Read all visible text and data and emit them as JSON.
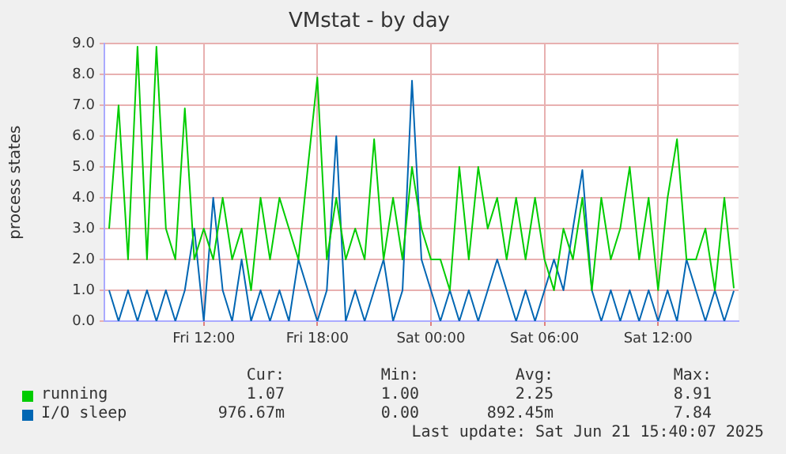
{
  "chart_data": {
    "type": "line",
    "title": "VMstat - by day",
    "ylabel": "process states",
    "xlim": [
      "2025-06-20T06:45",
      "2025-06-21T16:15"
    ],
    "xticks": [
      {
        "value": "2025-06-20T12:00",
        "label": "Fri 12:00"
      },
      {
        "value": "2025-06-20T18:00",
        "label": "Fri 18:00"
      },
      {
        "value": "2025-06-21T00:00",
        "label": "Sat 00:00"
      },
      {
        "value": "2025-06-21T06:00",
        "label": "Sat 06:00"
      },
      {
        "value": "2025-06-21T12:00",
        "label": "Sat 12:00"
      }
    ],
    "ylim": [
      0,
      9
    ],
    "yticks": [
      {
        "value": 0,
        "label": "0.0"
      },
      {
        "value": 1,
        "label": "1.0"
      },
      {
        "value": 2,
        "label": "2.0"
      },
      {
        "value": 3,
        "label": "3.0"
      },
      {
        "value": 4,
        "label": "4.0"
      },
      {
        "value": 5,
        "label": "5.0"
      },
      {
        "value": 6,
        "label": "6.0"
      },
      {
        "value": 7,
        "label": "7.0"
      },
      {
        "value": 8,
        "label": "8.0"
      },
      {
        "value": 9,
        "label": "9.0"
      }
    ],
    "x": [
      "2025-06-20T07:00",
      "2025-06-20T07:30",
      "2025-06-20T08:00",
      "2025-06-20T08:30",
      "2025-06-20T09:00",
      "2025-06-20T09:30",
      "2025-06-20T10:00",
      "2025-06-20T10:30",
      "2025-06-20T11:00",
      "2025-06-20T11:30",
      "2025-06-20T12:00",
      "2025-06-20T12:30",
      "2025-06-20T13:00",
      "2025-06-20T13:30",
      "2025-06-20T14:00",
      "2025-06-20T14:30",
      "2025-06-20T15:00",
      "2025-06-20T15:30",
      "2025-06-20T16:00",
      "2025-06-20T16:30",
      "2025-06-20T17:00",
      "2025-06-20T17:30",
      "2025-06-20T18:00",
      "2025-06-20T18:30",
      "2025-06-20T19:00",
      "2025-06-20T19:30",
      "2025-06-20T20:00",
      "2025-06-20T20:30",
      "2025-06-20T21:00",
      "2025-06-20T21:30",
      "2025-06-20T22:00",
      "2025-06-20T22:30",
      "2025-06-20T23:00",
      "2025-06-20T23:30",
      "2025-06-21T00:00",
      "2025-06-21T00:30",
      "2025-06-21T01:00",
      "2025-06-21T01:30",
      "2025-06-21T02:00",
      "2025-06-21T02:30",
      "2025-06-21T03:00",
      "2025-06-21T03:30",
      "2025-06-21T04:00",
      "2025-06-21T04:30",
      "2025-06-21T05:00",
      "2025-06-21T05:30",
      "2025-06-21T06:00",
      "2025-06-21T06:30",
      "2025-06-21T07:00",
      "2025-06-21T07:30",
      "2025-06-21T08:00",
      "2025-06-21T08:30",
      "2025-06-21T09:00",
      "2025-06-21T09:30",
      "2025-06-21T10:00",
      "2025-06-21T10:30",
      "2025-06-21T11:00",
      "2025-06-21T11:30",
      "2025-06-21T12:00",
      "2025-06-21T12:30",
      "2025-06-21T13:00",
      "2025-06-21T13:30",
      "2025-06-21T14:00",
      "2025-06-21T14:30",
      "2025-06-21T15:00",
      "2025-06-21T15:30",
      "2025-06-21T16:00"
    ],
    "series": [
      {
        "name": "running",
        "color": "#00cc00",
        "values": [
          3,
          7,
          2,
          8.9,
          2,
          8.9,
          3,
          2,
          6.9,
          2,
          3,
          2,
          4,
          2,
          3,
          1,
          4,
          2,
          4,
          3,
          2,
          5,
          7.9,
          2,
          4,
          2,
          3,
          2,
          5.9,
          2,
          4,
          2,
          5,
          3,
          2,
          2,
          1,
          5,
          2,
          5,
          3,
          4,
          2,
          4,
          2,
          4,
          2,
          1,
          3,
          2,
          4,
          1,
          4,
          2,
          3,
          5,
          2,
          4,
          1,
          4,
          5.9,
          2,
          2,
          3,
          1,
          4,
          1.07
        ]
      },
      {
        "name": "I/O sleep",
        "color": "#0066b3",
        "values": [
          1,
          0,
          1,
          0,
          1,
          0,
          1,
          0,
          1,
          3,
          0,
          4,
          1,
          0,
          2,
          0,
          1,
          0,
          1,
          0,
          2,
          1,
          0,
          1,
          6,
          0,
          1,
          0,
          1,
          2,
          0,
          1,
          7.8,
          2,
          1,
          0,
          1,
          0,
          1,
          0,
          1,
          2,
          1,
          0,
          1,
          0,
          1,
          2,
          1,
          3,
          4.9,
          1,
          0,
          1,
          0,
          1,
          0,
          1,
          0,
          1,
          0,
          2,
          1,
          0,
          1,
          0,
          0.98
        ]
      }
    ],
    "grid": true,
    "legend": "bottom",
    "marker": "none",
    "line_style": "solid",
    "annotations": [
      "Cur:",
      "Min:",
      "Avg:",
      "Max:",
      "1.07",
      "1.00",
      "2.25",
      "8.91",
      "976.67m",
      "0.00",
      "892.45m",
      "7.84",
      "Last update: Sat Jun 21 15:40:07 2025"
    ]
  }
}
